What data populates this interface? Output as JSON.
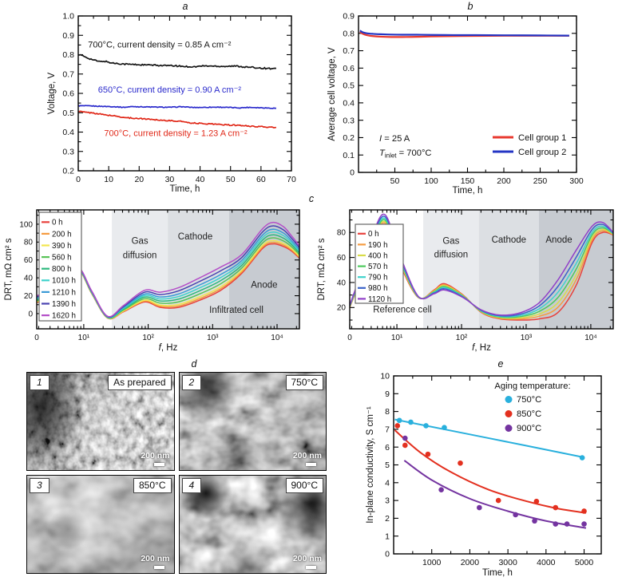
{
  "chart_data": [
    {
      "id": "a",
      "type": "line",
      "panel_label": "a",
      "xlabel": "Time, h",
      "ylabel": "Voltage, V",
      "xlim": [
        0,
        70
      ],
      "ylim": [
        0.2,
        1.0
      ],
      "xticks": [
        0,
        10,
        20,
        30,
        40,
        50,
        60,
        70
      ],
      "yticks": [
        "0.2",
        "0.3",
        "0.4",
        "0.5",
        "0.6",
        "0.7",
        "0.8",
        "0.9",
        "1.0"
      ],
      "series": [
        {
          "name": "700°C, current density = 0.85 A cm⁻²",
          "color": "#141414",
          "label_xy": [
            3.2,
            0.838
          ],
          "points": [
            [
              0,
              0.802
            ],
            [
              2,
              0.79
            ],
            [
              4,
              0.778
            ],
            [
              6,
              0.768
            ],
            [
              7.5,
              0.763
            ],
            [
              8.5,
              0.767
            ],
            [
              11,
              0.757
            ],
            [
              14,
              0.753
            ],
            [
              17,
              0.75
            ],
            [
              20,
              0.748
            ],
            [
              24,
              0.746
            ],
            [
              28,
              0.744
            ],
            [
              32,
              0.742
            ],
            [
              35,
              0.739
            ],
            [
              38,
              0.737
            ],
            [
              41,
              0.742
            ],
            [
              44,
              0.741
            ],
            [
              48,
              0.74
            ],
            [
              52,
              0.741
            ],
            [
              55,
              0.736
            ],
            [
              58,
              0.733
            ],
            [
              61,
              0.73
            ],
            [
              65,
              0.727
            ]
          ]
        },
        {
          "name": "650°C, current density = 0.90 A cm⁻²",
          "color": "#2a2acc",
          "label_xy": [
            6.5,
            0.604
          ],
          "points": [
            [
              0,
              0.536
            ],
            [
              4,
              0.535
            ],
            [
              8,
              0.533
            ],
            [
              12,
              0.531
            ],
            [
              15,
              0.528
            ],
            [
              18,
              0.532
            ],
            [
              22,
              0.53
            ],
            [
              26,
              0.529
            ],
            [
              30,
              0.528
            ],
            [
              34,
              0.531
            ],
            [
              38,
              0.527
            ],
            [
              42,
              0.528
            ],
            [
              46,
              0.529
            ],
            [
              50,
              0.527
            ],
            [
              53,
              0.525
            ],
            [
              56,
              0.528
            ],
            [
              60,
              0.526
            ],
            [
              65,
              0.523
            ]
          ]
        },
        {
          "name": "700°C, current density = 1.23 A cm⁻²",
          "color": "#e02717",
          "label_xy": [
            8.5,
            0.38
          ],
          "points": [
            [
              0,
              0.508
            ],
            [
              2,
              0.503
            ],
            [
              4,
              0.5
            ],
            [
              6,
              0.496
            ],
            [
              8,
              0.491
            ],
            [
              10,
              0.487
            ],
            [
              12,
              0.483
            ],
            [
              14,
              0.478
            ],
            [
              16,
              0.474
            ],
            [
              18,
              0.472
            ],
            [
              21,
              0.469
            ],
            [
              24,
              0.466
            ],
            [
              27,
              0.462
            ],
            [
              30,
              0.459
            ],
            [
              33,
              0.456
            ],
            [
              35.5,
              0.453
            ],
            [
              36.5,
              0.448
            ],
            [
              40,
              0.445
            ],
            [
              44,
              0.442
            ],
            [
              48,
              0.438
            ],
            [
              52,
              0.435
            ],
            [
              56,
              0.431
            ],
            [
              60,
              0.428
            ],
            [
              65,
              0.423
            ]
          ]
        }
      ]
    },
    {
      "id": "b",
      "type": "line",
      "panel_label": "b",
      "xlabel": "Time, h",
      "ylabel": "Average cell voltage, V",
      "xlim": [
        0,
        300
      ],
      "ylim": [
        0,
        0.9
      ],
      "xticks": [
        50,
        100,
        150,
        200,
        250,
        300
      ],
      "yticks": [
        "0",
        "0.1",
        "0.2",
        "0.3",
        "0.4",
        "0.5",
        "0.6",
        "0.7",
        "0.8",
        "0.9"
      ],
      "notes": [
        {
          "italic": "I",
          "sub": "",
          "rest": " = 25 A"
        },
        {
          "italic": "T",
          "sub": "inlet",
          "rest": " = 700°C"
        }
      ],
      "legend": [
        {
          "label": "Cell group 1",
          "color": "#e8392f"
        },
        {
          "label": "Cell group 2",
          "color": "#2435c4"
        }
      ],
      "series": [
        {
          "name": "Cell group 1",
          "color": "#e8392f",
          "points": [
            [
              2,
              0.809
            ],
            [
              6,
              0.797
            ],
            [
              12,
              0.789
            ],
            [
              20,
              0.784
            ],
            [
              30,
              0.781
            ],
            [
              45,
              0.779
            ],
            [
              60,
              0.779
            ],
            [
              80,
              0.78
            ],
            [
              100,
              0.782
            ],
            [
              130,
              0.784
            ],
            [
              160,
              0.785
            ],
            [
              200,
              0.786
            ],
            [
              250,
              0.786
            ],
            [
              290,
              0.786
            ]
          ]
        },
        {
          "name": "Cell group 2",
          "color": "#2435c4",
          "points": [
            [
              2,
              0.816
            ],
            [
              6,
              0.806
            ],
            [
              12,
              0.8
            ],
            [
              20,
              0.797
            ],
            [
              30,
              0.795
            ],
            [
              45,
              0.793
            ],
            [
              60,
              0.792
            ],
            [
              80,
              0.792
            ],
            [
              100,
              0.791
            ],
            [
              130,
              0.79
            ],
            [
              160,
              0.79
            ],
            [
              200,
              0.789
            ],
            [
              250,
              0.788
            ],
            [
              290,
              0.787
            ]
          ]
        }
      ]
    },
    {
      "id": "c_left",
      "type": "line",
      "panel_label": "c",
      "xlabel_italic": "f",
      "xlabel_rest": ", Hz",
      "ylabel": "DRT, mΩ cm² s",
      "xscale": "log",
      "note": "Infiltrated cell",
      "xticks": [
        "0",
        "10¹",
        "10²",
        "10³",
        "10⁴"
      ],
      "yticks": [
        "0",
        "20",
        "40",
        "60",
        "80",
        "100"
      ],
      "regions": [
        {
          "label": "Gas diffusion",
          "u0": 0.286,
          "u1": 0.499,
          "color": "#e9ebee"
        },
        {
          "label": "Cathode",
          "u0": 0.499,
          "u1": 0.732,
          "color": "#dcdfe3"
        },
        {
          "label": "Anode",
          "u0": 0.732,
          "u1": 1.0,
          "color": "#c7cbd1"
        }
      ],
      "series_u": [
        0,
        0.05,
        0.1,
        0.158,
        0.21,
        0.27,
        0.33,
        0.41,
        0.47,
        0.54,
        0.62,
        0.7,
        0.78,
        0.86,
        0.9,
        0.94,
        0.97,
        1.0
      ],
      "base_y": [
        12,
        20,
        36,
        49,
        22,
        -5,
        2,
        13,
        7,
        7,
        15,
        26,
        45,
        73,
        78,
        75,
        70,
        62
      ],
      "top_y": [
        20,
        26,
        40,
        52,
        25,
        -3,
        9,
        26,
        24,
        29,
        40,
        52,
        66,
        95,
        102,
        97,
        87,
        76
      ],
      "series": [
        {
          "name": "0 h",
          "color": "#e8413c",
          "w": 0
        },
        {
          "name": "200 h",
          "color": "#f59b40",
          "w": 0.07
        },
        {
          "name": "390 h",
          "color": "#f2e64e",
          "w": 0.15
        },
        {
          "name": "560 h",
          "color": "#58c356",
          "w": 0.28
        },
        {
          "name": "800 h",
          "color": "#2db87d",
          "w": 0.42
        },
        {
          "name": "1010 h",
          "color": "#3ed2cc",
          "w": 0.55
        },
        {
          "name": "1210 h",
          "color": "#3b9ad6",
          "w": 0.68
        },
        {
          "name": "1390 h",
          "color": "#4a43b0",
          "w": 0.84
        },
        {
          "name": "1620 h",
          "color": "#b44fc8",
          "w": 1
        }
      ]
    },
    {
      "id": "c_right",
      "type": "line",
      "panel_label": "c",
      "xlabel_italic": "f",
      "xlabel_rest": ", Hz",
      "ylabel": "DRT, mΩ cm² s",
      "xscale": "log",
      "note": "Reference cell",
      "xticks": [
        "0",
        "10¹",
        "10²",
        "10³",
        "10⁴"
      ],
      "yticks": [
        "20",
        "40",
        "60",
        "80"
      ],
      "regions": [
        {
          "label": "Gas diffusion",
          "u0": 0.279,
          "u1": 0.49,
          "color": "#e9ebee"
        },
        {
          "label": "Cathode",
          "u0": 0.49,
          "u1": 0.718,
          "color": "#dcdfe3"
        },
        {
          "label": "Anode",
          "u0": 0.718,
          "u1": 1.0,
          "color": "#c7cbd1"
        }
      ],
      "series_u": [
        0,
        0.04,
        0.09,
        0.135,
        0.19,
        0.26,
        0.32,
        0.36,
        0.43,
        0.5,
        0.57,
        0.65,
        0.72,
        0.79,
        0.86,
        0.92,
        0.96,
        1.0
      ],
      "base_y": [
        20,
        42,
        72,
        86,
        55,
        28,
        34,
        39,
        30,
        16,
        11,
        10,
        11,
        16,
        38,
        72,
        80,
        78
      ],
      "top_y": [
        22,
        46,
        80,
        94,
        62,
        29,
        31,
        34,
        28,
        18,
        14,
        16,
        24,
        42,
        66,
        85,
        88,
        80
      ],
      "series": [
        {
          "name": "0 h",
          "color": "#e8413c",
          "w": 0
        },
        {
          "name": "190 h",
          "color": "#f59b40",
          "w": 0.16
        },
        {
          "name": "400 h",
          "color": "#d8dc48",
          "w": 0.3
        },
        {
          "name": "570 h",
          "color": "#4cc95c",
          "w": 0.46
        },
        {
          "name": "790 h",
          "color": "#3ed2cc",
          "w": 0.62
        },
        {
          "name": "980 h",
          "color": "#3a62c9",
          "w": 0.8
        },
        {
          "name": "1120 h",
          "color": "#9040c8",
          "w": 1
        }
      ]
    },
    {
      "id": "e",
      "type": "scatter",
      "panel_label": "e",
      "xlabel": "Time, h",
      "ylabel": "In-plane conductivity, S cm⁻¹",
      "xlim": [
        0,
        5450
      ],
      "ylim": [
        0,
        10
      ],
      "xticks": [
        1000,
        2000,
        3000,
        4000,
        5000
      ],
      "yticks": [
        "0",
        "1",
        "2",
        "3",
        "4",
        "5",
        "6",
        "7",
        "8",
        "9",
        "10"
      ],
      "legend_title": "Aging temperature:",
      "series": [
        {
          "name": "750°C",
          "color": "#29b0dd",
          "dots": [
            [
              150,
              7.5
            ],
            [
              450,
              7.4
            ],
            [
              850,
              7.2
            ],
            [
              1330,
              7.1
            ],
            [
              4950,
              5.4
            ]
          ],
          "fit": [
            [
              30,
              7.55
            ],
            [
              2500,
              6.5
            ],
            [
              5000,
              5.42
            ]
          ]
        },
        {
          "name": "850°C",
          "color": "#e3301f",
          "dots": [
            [
              100,
              7.2
            ],
            [
              300,
              6.1
            ],
            [
              900,
              5.6
            ],
            [
              1750,
              5.1
            ],
            [
              2750,
              3.0
            ],
            [
              3750,
              2.95
            ],
            [
              4250,
              2.6
            ],
            [
              5000,
              2.4
            ]
          ],
          "fit": [
            [
              30,
              6.95
            ],
            [
              700,
              5.7
            ],
            [
              1500,
              4.6
            ],
            [
              2500,
              3.6
            ],
            [
              3500,
              2.95
            ],
            [
              4300,
              2.55
            ],
            [
              5050,
              2.3
            ]
          ]
        },
        {
          "name": "900°C",
          "color": "#7434a0",
          "dots": [
            [
              300,
              6.5
            ],
            [
              1250,
              3.6
            ],
            [
              2250,
              2.6
            ],
            [
              3200,
              2.2
            ],
            [
              3700,
              1.85
            ],
            [
              4250,
              1.68
            ],
            [
              4550,
              1.68
            ],
            [
              5000,
              1.68
            ]
          ],
          "fit": [
            [
              280,
              5.25
            ],
            [
              1000,
              4.15
            ],
            [
              2000,
              3.1
            ],
            [
              3000,
              2.4
            ],
            [
              4000,
              1.85
            ],
            [
              5050,
              1.45
            ]
          ]
        }
      ]
    }
  ],
  "sem_panel": {
    "panel_label": "d",
    "images": [
      {
        "index": "1",
        "caption": "As prepared",
        "scale_bar": "200 nm"
      },
      {
        "index": "2",
        "caption": "750°C",
        "scale_bar": "200 nm"
      },
      {
        "index": "3",
        "caption": "850°C",
        "scale_bar": "200 nm"
      },
      {
        "index": "4",
        "caption": "900°C",
        "scale_bar": "200 nm"
      }
    ]
  }
}
